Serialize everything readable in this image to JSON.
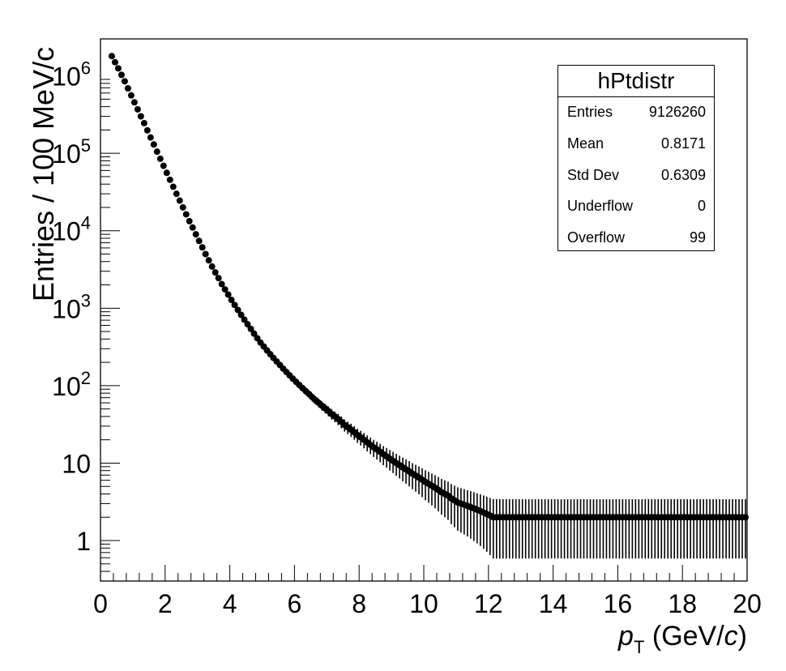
{
  "chart_data": {
    "type": "scatter",
    "title": "",
    "xlabel": {
      "main": "p",
      "sub": "T",
      "unit_prefix": "(GeV/",
      "unit_italic": "c",
      "unit_suffix": ")"
    },
    "ylabel": "Entries / 100 MeV/c",
    "x_ticks": [
      "0",
      "2",
      "4",
      "6",
      "8",
      "10",
      "12",
      "14",
      "16",
      "18",
      "20"
    ],
    "y_ticks": [
      {
        "value": 1,
        "base": "1",
        "exp": ""
      },
      {
        "value": 10,
        "base": "10",
        "exp": ""
      },
      {
        "value": 100,
        "base": "10",
        "exp": "2"
      },
      {
        "value": 1000,
        "base": "10",
        "exp": "3"
      },
      {
        "value": 10000,
        "base": "10",
        "exp": "4"
      },
      {
        "value": 100000,
        "base": "10",
        "exp": "5"
      },
      {
        "value": 1000000,
        "base": "10",
        "exp": "6"
      }
    ],
    "xlim": [
      0,
      20
    ],
    "ylim": [
      0.3,
      3000000
    ],
    "yscale": "log",
    "grid": false,
    "series": [
      {
        "x_start": 0.35,
        "x_step": 0.1,
        "y": [
          1800000,
          1500000,
          1250000,
          1030000,
          850000,
          690000,
          560000,
          455000,
          370000,
          300000,
          245000,
          198000,
          160000,
          130000,
          105000,
          85000,
          69000,
          56000,
          45500,
          37000,
          30000,
          24500,
          20000,
          16300,
          13300,
          11000,
          9000,
          7400,
          6100,
          5000,
          4150,
          3450,
          2900,
          2450,
          2050,
          1750,
          1500,
          1280,
          1100,
          950,
          820,
          710,
          620,
          540,
          470,
          410,
          360,
          320,
          285,
          255,
          228,
          205,
          185,
          166,
          150,
          136,
          123,
          112,
          102,
          93,
          85,
          78,
          71,
          65,
          60,
          55,
          51,
          47,
          43,
          40,
          37,
          34,
          31,
          29,
          27,
          25,
          23,
          21.5,
          20,
          18.5,
          17.2,
          16,
          15,
          14,
          13,
          12.2,
          11.4,
          10.7,
          10,
          9.4,
          8.8,
          8.3,
          7.8,
          7.3,
          6.9,
          6.5,
          6.1,
          5.7,
          5.4,
          5.1,
          4.8,
          4.5,
          4.2,
          4,
          3.8,
          3.5,
          3.3,
          3.1,
          3,
          2.9,
          2.8,
          2.7,
          2.6,
          2.5,
          2.4,
          2.3,
          2.2,
          2.1,
          2,
          2,
          2,
          2,
          2,
          2,
          2,
          2,
          2,
          2,
          2,
          2,
          2,
          2,
          2,
          2,
          2,
          2,
          2,
          2,
          2,
          2,
          2,
          2,
          2,
          2,
          2,
          2,
          2,
          2,
          2,
          2,
          2,
          2,
          2,
          2,
          2,
          2,
          2,
          2,
          2,
          2,
          2,
          2,
          2,
          2,
          2,
          2,
          2,
          2,
          2,
          2,
          2,
          2,
          2,
          2,
          2,
          2,
          2,
          2,
          2,
          2,
          2,
          2,
          2,
          2,
          2,
          2,
          2,
          2,
          2,
          2,
          2,
          2,
          2,
          2,
          2,
          2,
          2
        ]
      }
    ]
  },
  "stats_box": {
    "title": "hPtdistr",
    "rows": [
      {
        "label": "Entries",
        "value": "9126260"
      },
      {
        "label": "Mean",
        "value": "0.8171"
      },
      {
        "label": "Std Dev",
        "value": "0.6309"
      },
      {
        "label": "Underflow",
        "value": "0"
      },
      {
        "label": "Overflow",
        "value": "99"
      }
    ]
  },
  "colors": {
    "marker": "#000000",
    "frame": "#000000",
    "background": "#ffffff"
  }
}
